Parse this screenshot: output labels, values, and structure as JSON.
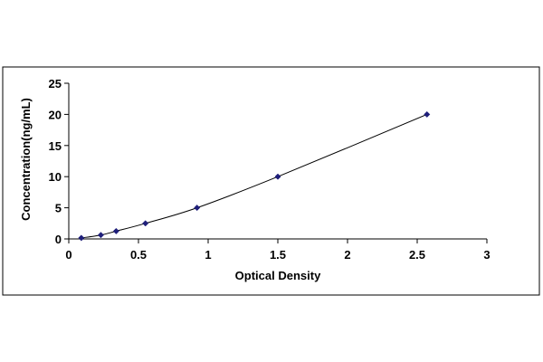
{
  "chart_data": {
    "type": "scatter",
    "title": "",
    "xlabel": "Optical Density",
    "ylabel": "Concentration(ng/mL)",
    "xlim": [
      0,
      3
    ],
    "ylim": [
      0,
      25
    ],
    "xticks": [
      "0",
      "0.5",
      "1",
      "1.5",
      "2",
      "2.5",
      "3"
    ],
    "yticks": [
      "0",
      "5",
      "10",
      "15",
      "20",
      "25"
    ],
    "grid": false,
    "legend": "none",
    "series": [
      {
        "x": [
          0.09,
          0.23,
          0.34,
          0.55,
          0.92,
          1.5,
          2.57
        ],
        "y": [
          0.16,
          0.625,
          1.25,
          2.5,
          5,
          10,
          20
        ],
        "marker": "diamond",
        "line": "smooth trend curve",
        "color": "#1f1f7a"
      }
    ]
  }
}
